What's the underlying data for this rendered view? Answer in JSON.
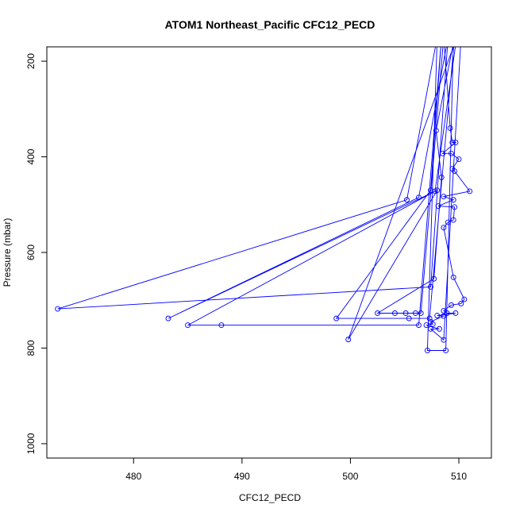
{
  "chart_data": {
    "type": "line",
    "title": "ATOM1 Northeast_Pacific CFC12_PECD",
    "xlabel": "CFC12_PECD",
    "ylabel": "Pressure (mbar)",
    "xlim": [
      472,
      513
    ],
    "ylim": [
      1030,
      170
    ],
    "y_reversed": true,
    "x_ticks": [
      480,
      490,
      500,
      510
    ],
    "y_ticks": [
      200,
      400,
      600,
      800,
      1000
    ],
    "series_color": "#0000ff",
    "marker": "open-circle",
    "points": [
      {
        "x": 509.5,
        "y": 150,
        "marker": false
      },
      {
        "x": 508.8,
        "y": 805
      },
      {
        "x": 507.1,
        "y": 805
      },
      {
        "x": 508.0,
        "y": 150,
        "marker": false
      },
      {
        "x": 505.2,
        "y": 490
      },
      {
        "x": 473.0,
        "y": 718
      },
      {
        "x": 507.4,
        "y": 672
      },
      {
        "x": 509.0,
        "y": 150,
        "marker": false
      },
      {
        "x": 506.3,
        "y": 485
      },
      {
        "x": 483.2,
        "y": 738
      },
      {
        "x": 508.0,
        "y": 470
      },
      {
        "x": 499.8,
        "y": 782
      },
      {
        "x": 509.8,
        "y": 150,
        "marker": false
      },
      {
        "x": 507.8,
        "y": 472
      },
      {
        "x": 485.0,
        "y": 752
      },
      {
        "x": 488.1,
        "y": 752
      },
      {
        "x": 506.3,
        "y": 752
      },
      {
        "x": 508.4,
        "y": 150,
        "marker": false
      },
      {
        "x": 507.4,
        "y": 470
      },
      {
        "x": 498.7,
        "y": 738
      },
      {
        "x": 505.4,
        "y": 738
      },
      {
        "x": 507.3,
        "y": 738
      },
      {
        "x": 509.6,
        "y": 150,
        "marker": false
      },
      {
        "x": 507.9,
        "y": 345
      },
      {
        "x": 508.4,
        "y": 443
      },
      {
        "x": 507.7,
        "y": 655
      },
      {
        "x": 502.5,
        "y": 727
      },
      {
        "x": 504.1,
        "y": 727
      },
      {
        "x": 505.1,
        "y": 727
      },
      {
        "x": 506.0,
        "y": 727
      },
      {
        "x": 506.5,
        "y": 727
      },
      {
        "x": 508.6,
        "y": 150,
        "marker": false
      },
      {
        "x": 509.2,
        "y": 340
      },
      {
        "x": 509.4,
        "y": 370
      },
      {
        "x": 509.7,
        "y": 370
      },
      {
        "x": 508.5,
        "y": 393
      },
      {
        "x": 509.3,
        "y": 393
      },
      {
        "x": 510.0,
        "y": 405
      },
      {
        "x": 509.4,
        "y": 425
      },
      {
        "x": 509.6,
        "y": 430
      },
      {
        "x": 511.0,
        "y": 472
      },
      {
        "x": 508.6,
        "y": 483
      },
      {
        "x": 509.5,
        "y": 490
      },
      {
        "x": 508.1,
        "y": 503
      },
      {
        "x": 509.6,
        "y": 505
      },
      {
        "x": 509.5,
        "y": 532
      },
      {
        "x": 509.0,
        "y": 537
      },
      {
        "x": 508.6,
        "y": 548
      },
      {
        "x": 509.5,
        "y": 652
      },
      {
        "x": 510.5,
        "y": 698
      },
      {
        "x": 510.2,
        "y": 707
      },
      {
        "x": 509.3,
        "y": 710
      },
      {
        "x": 508.6,
        "y": 722
      },
      {
        "x": 508.9,
        "y": 727
      },
      {
        "x": 509.7,
        "y": 727
      },
      {
        "x": 508.0,
        "y": 732
      },
      {
        "x": 508.6,
        "y": 733
      },
      {
        "x": 507.4,
        "y": 745
      },
      {
        "x": 507.6,
        "y": 750
      },
      {
        "x": 507.0,
        "y": 752
      },
      {
        "x": 508.2,
        "y": 760
      },
      {
        "x": 507.4,
        "y": 760
      },
      {
        "x": 508.6,
        "y": 783
      },
      {
        "x": 510.2,
        "y": 150,
        "marker": false
      }
    ]
  }
}
